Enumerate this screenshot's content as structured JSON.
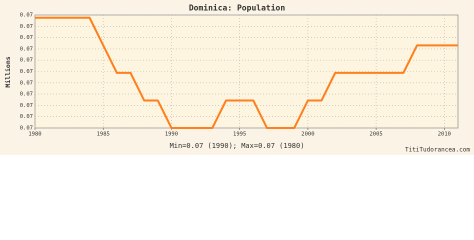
{
  "chart_data": {
    "type": "line",
    "title": "Dominica: Population",
    "y_label": "Millions",
    "x": [
      1980,
      1981,
      1982,
      1983,
      1984,
      1985,
      1986,
      1987,
      1988,
      1989,
      1990,
      1991,
      1992,
      1993,
      1994,
      1995,
      1996,
      1997,
      1998,
      1999,
      2000,
      2001,
      2002,
      2003,
      2004,
      2005,
      2006,
      2007,
      2008,
      2009,
      2010,
      2011
    ],
    "series": [
      {
        "name": "Population",
        "color": "#ff7f1e",
        "values": [
          0.074,
          0.074,
          0.074,
          0.074,
          0.074,
          0.073,
          0.072,
          0.072,
          0.071,
          0.071,
          0.07,
          0.07,
          0.07,
          0.07,
          0.071,
          0.071,
          0.071,
          0.07,
          0.07,
          0.07,
          0.071,
          0.071,
          0.072,
          0.072,
          0.072,
          0.072,
          0.072,
          0.072,
          0.073,
          0.073,
          0.073,
          0.073
        ]
      }
    ],
    "xlim": [
      1980,
      2011
    ],
    "xticks": [
      1980,
      1985,
      1990,
      1995,
      2000,
      2005,
      2010
    ],
    "ylim": [
      0.07,
      0.0741
    ],
    "yticks": [
      {
        "value": 0.07,
        "label": "0.07"
      },
      {
        "value": 0.07041,
        "label": "0.07"
      },
      {
        "value": 0.07082,
        "label": "0.07"
      },
      {
        "value": 0.07123,
        "label": "0.07"
      },
      {
        "value": 0.07164,
        "label": "0.07"
      },
      {
        "value": 0.07205,
        "label": "0.07"
      },
      {
        "value": 0.07246,
        "label": "0.07"
      },
      {
        "value": 0.07287,
        "label": "0.07"
      },
      {
        "value": 0.07328,
        "label": "0.07"
      },
      {
        "value": 0.07369,
        "label": "0.07"
      },
      {
        "value": 0.0741,
        "label": "0.07"
      }
    ],
    "grid": true,
    "footer": "Min=0.07 (1990); Max=0.07 (1980)",
    "watermark": "TitiTudorancea.com"
  }
}
